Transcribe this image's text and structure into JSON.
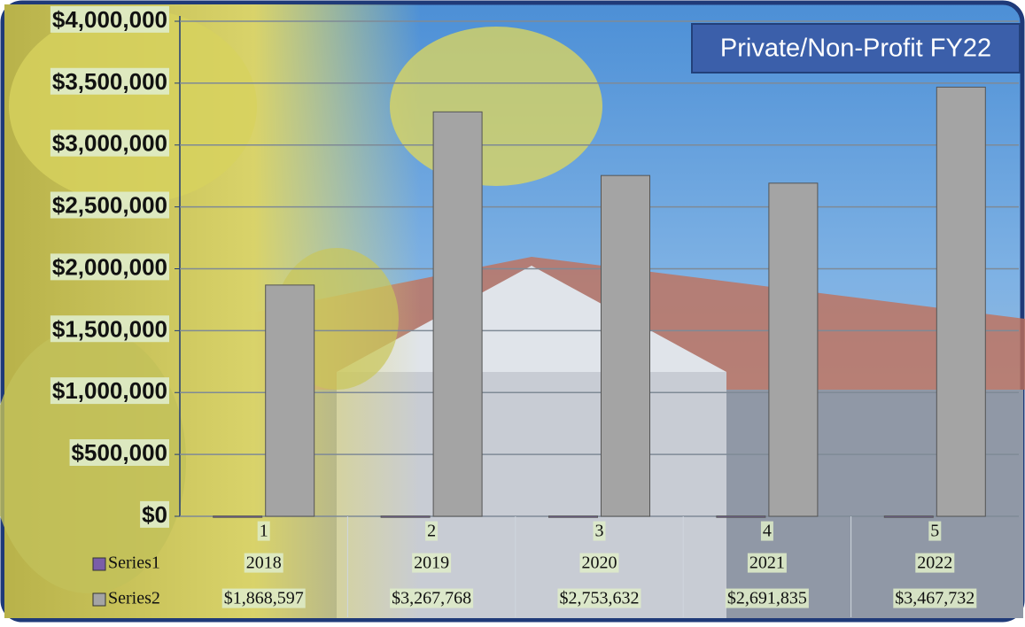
{
  "chart_data": {
    "type": "bar",
    "title": "Private/Non-Profit FY22",
    "categories": [
      "1",
      "2",
      "3",
      "4",
      "5"
    ],
    "series": [
      {
        "name": "Series1",
        "color": "#7a5ea8",
        "values": [
          2018,
          2019,
          2020,
          2021,
          2022
        ]
      },
      {
        "name": "Series2",
        "color": "#a4a4a4",
        "values": [
          1868597,
          3267768,
          2753632,
          2691835,
          3467732
        ],
        "value_labels": [
          "$1,868,597",
          "$3,267,768",
          "$2,753,632",
          "$2,691,835",
          "$3,467,732"
        ]
      }
    ],
    "ylim": [
      0,
      4000000
    ],
    "yticks": [
      {
        "value": 0,
        "label": "$0"
      },
      {
        "value": 500000,
        "label": "$500,000"
      },
      {
        "value": 1000000,
        "label": "$1,000,000"
      },
      {
        "value": 1500000,
        "label": "$1,500,000"
      },
      {
        "value": 2000000,
        "label": "$2,000,000"
      },
      {
        "value": 2500000,
        "label": "$2,500,000"
      },
      {
        "value": 3000000,
        "label": "$3,000,000"
      },
      {
        "value": 3500000,
        "label": "$3,500,000"
      },
      {
        "value": 4000000,
        "label": "$4,000,000"
      }
    ],
    "grid": true
  }
}
